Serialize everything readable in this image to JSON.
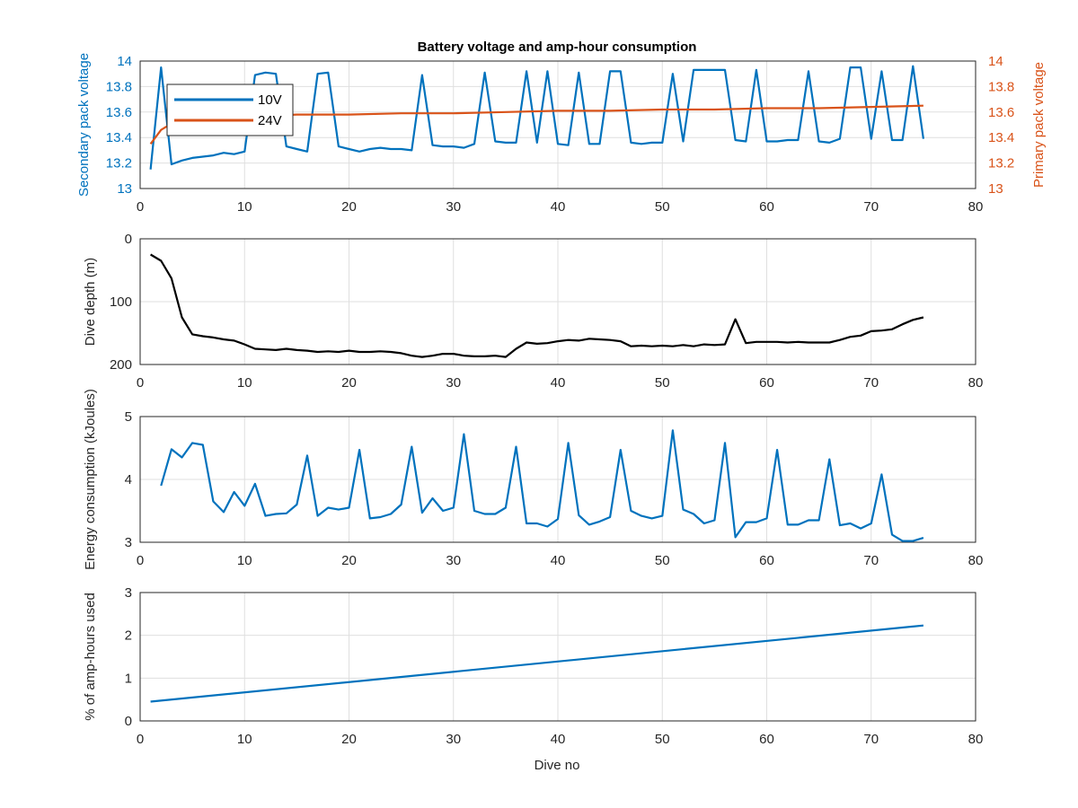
{
  "chart_data": {
    "title": "Battery voltage and amp-hour consumption",
    "xlabel": "Dive no",
    "xlim": [
      0,
      80
    ],
    "xticks": [
      0,
      10,
      20,
      30,
      40,
      50,
      60,
      70,
      80
    ],
    "grid": true,
    "colors": {
      "blue": "#0072BD",
      "orange": "#D95319",
      "black": "#000000"
    },
    "subplots": [
      {
        "type": "line",
        "ylabel_left": "Secondary pack voltage",
        "ylabel_right": "Primary pack voltage",
        "ylim": [
          13,
          14
        ],
        "yticks": [
          13,
          13.2,
          13.4,
          13.6,
          13.8,
          14
        ],
        "legend": {
          "placement": "top-left",
          "entries": [
            "10V",
            "24V"
          ]
        },
        "series": [
          {
            "name": "10V",
            "axis": "left",
            "color": "#0072BD",
            "x": [
              1,
              2,
              3,
              4,
              5,
              6,
              7,
              8,
              9,
              10,
              11,
              12,
              13,
              14,
              15,
              16,
              17,
              18,
              19,
              20,
              21,
              22,
              23,
              24,
              25,
              26,
              27,
              28,
              29,
              30,
              31,
              32,
              33,
              34,
              35,
              36,
              37,
              38,
              39,
              40,
              41,
              42,
              43,
              44,
              45,
              46,
              47,
              48,
              49,
              50,
              51,
              52,
              53,
              54,
              55,
              56,
              57,
              58,
              59,
              60,
              61,
              62,
              63,
              64,
              65,
              66,
              67,
              68,
              69,
              70,
              71,
              72,
              73,
              74,
              75
            ],
            "values": [
              13.15,
              13.95,
              13.19,
              13.22,
              13.24,
              13.25,
              13.26,
              13.28,
              13.27,
              13.29,
              13.89,
              13.91,
              13.9,
              13.33,
              13.31,
              13.29,
              13.9,
              13.91,
              13.33,
              13.31,
              13.29,
              13.31,
              13.32,
              13.31,
              13.31,
              13.3,
              13.89,
              13.34,
              13.33,
              13.33,
              13.32,
              13.35,
              13.91,
              13.37,
              13.36,
              13.36,
              13.92,
              13.36,
              13.92,
              13.35,
              13.34,
              13.91,
              13.35,
              13.35,
              13.92,
              13.92,
              13.36,
              13.35,
              13.36,
              13.36,
              13.9,
              13.37,
              13.93,
              13.93,
              13.93,
              13.93,
              13.38,
              13.37,
              13.93,
              13.37,
              13.37,
              13.38,
              13.38,
              13.92,
              13.37,
              13.36,
              13.39,
              13.95,
              13.95,
              13.39,
              13.92,
              13.38,
              13.38,
              13.96,
              13.39
            ]
          },
          {
            "name": "24V",
            "axis": "right",
            "color": "#D95319",
            "x": [
              1,
              2,
              3,
              5,
              8,
              12,
              15,
              20,
              25,
              30,
              35,
              40,
              45,
              50,
              55,
              60,
              65,
              70,
              75
            ],
            "values": [
              13.35,
              13.46,
              13.51,
              13.54,
              13.56,
              13.57,
              13.58,
              13.58,
              13.59,
              13.59,
              13.6,
              13.61,
              13.61,
              13.62,
              13.62,
              13.63,
              13.63,
              13.64,
              13.65
            ]
          }
        ]
      },
      {
        "type": "line",
        "ylabel": "Dive depth (m)",
        "ylim": [
          0,
          200
        ],
        "y_reversed": true,
        "yticks": [
          0,
          100,
          200
        ],
        "series": [
          {
            "color": "#000000",
            "x": [
              1,
              2,
              3,
              4,
              5,
              6,
              7,
              8,
              9,
              10,
              11,
              12,
              13,
              14,
              15,
              16,
              17,
              18,
              19,
              20,
              21,
              22,
              23,
              24,
              25,
              26,
              27,
              28,
              29,
              30,
              31,
              32,
              33,
              34,
              35,
              36,
              37,
              38,
              39,
              40,
              41,
              42,
              43,
              44,
              45,
              46,
              47,
              48,
              49,
              50,
              51,
              52,
              53,
              54,
              55,
              56,
              57,
              58,
              59,
              60,
              61,
              62,
              63,
              64,
              65,
              66,
              67,
              68,
              69,
              70,
              71,
              72,
              73,
              74,
              75
            ],
            "values": [
              25,
              35,
              63,
              125,
              152,
              155,
              157,
              160,
              162,
              168,
              175,
              176,
              177,
              175,
              177,
              178,
              180,
              179,
              180,
              178,
              180,
              180,
              179,
              180,
              182,
              186,
              188,
              186,
              183,
              183,
              186,
              187,
              187,
              186,
              188,
              175,
              165,
              167,
              166,
              163,
              161,
              162,
              159,
              160,
              161,
              163,
              171,
              170,
              171,
              170,
              171,
              169,
              171,
              168,
              169,
              168,
              128,
              166,
              164,
              164,
              164,
              165,
              164,
              165,
              165,
              165,
              161,
              156,
              154,
              147,
              146,
              144,
              136,
              129,
              125
            ]
          }
        ]
      },
      {
        "type": "line",
        "ylabel": "Energy consumption (kJoules)",
        "ylim": [
          3,
          5
        ],
        "yticks": [
          3,
          4,
          5
        ],
        "series": [
          {
            "color": "#0072BD",
            "x": [
              2,
              3,
              4,
              5,
              6,
              7,
              8,
              9,
              10,
              11,
              12,
              13,
              14,
              15,
              16,
              17,
              18,
              19,
              20,
              21,
              22,
              23,
              24,
              25,
              26,
              27,
              28,
              29,
              30,
              31,
              32,
              33,
              34,
              35,
              36,
              37,
              38,
              39,
              40,
              41,
              42,
              43,
              44,
              45,
              46,
              47,
              48,
              49,
              50,
              51,
              52,
              53,
              54,
              55,
              56,
              57,
              58,
              59,
              60,
              61,
              62,
              63,
              64,
              65,
              66,
              67,
              68,
              69,
              70,
              71,
              72,
              73,
              74,
              75
            ],
            "values": [
              3.9,
              4.48,
              4.35,
              4.58,
              4.55,
              3.65,
              3.48,
              3.8,
              3.58,
              3.93,
              3.42,
              3.45,
              3.46,
              3.6,
              4.38,
              3.42,
              3.55,
              3.52,
              3.55,
              4.47,
              3.38,
              3.4,
              3.45,
              3.6,
              4.52,
              3.47,
              3.7,
              3.5,
              3.55,
              4.72,
              3.5,
              3.45,
              3.45,
              3.55,
              4.52,
              3.3,
              3.3,
              3.25,
              3.37,
              4.58,
              3.43,
              3.28,
              3.33,
              3.4,
              4.47,
              3.5,
              3.42,
              3.38,
              3.42,
              4.78,
              3.52,
              3.45,
              3.3,
              3.35,
              4.58,
              3.08,
              3.32,
              3.32,
              3.38,
              4.47,
              3.28,
              3.28,
              3.35,
              3.35,
              4.32,
              3.27,
              3.3,
              3.22,
              3.3,
              4.08,
              3.12,
              3.02,
              3.02,
              3.07
            ]
          }
        ]
      },
      {
        "type": "line",
        "ylabel": "% of amp-hours used",
        "ylim": [
          0,
          3
        ],
        "yticks": [
          0,
          1,
          2,
          3
        ],
        "series": [
          {
            "color": "#0072BD",
            "x": [
              1,
              75
            ],
            "values": [
              0.45,
              2.23
            ]
          }
        ]
      }
    ]
  }
}
